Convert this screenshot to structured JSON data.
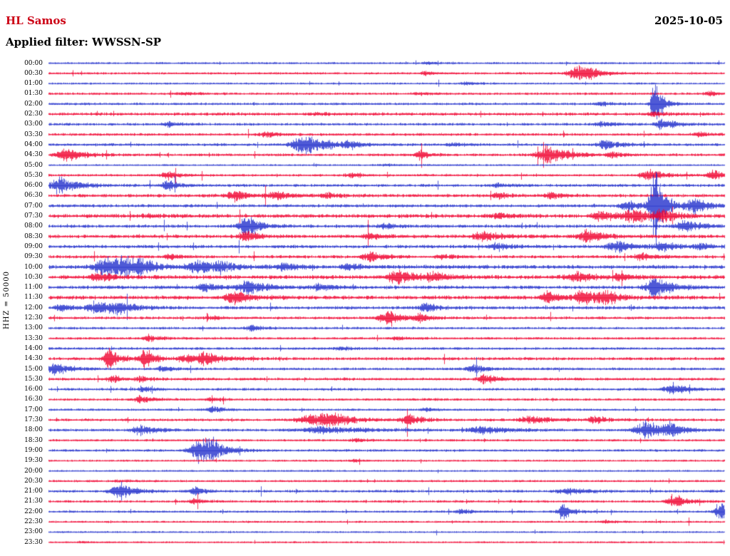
{
  "header": {
    "station": "HL Samos",
    "date": "2025-10-05",
    "filter_label": "Applied filter: WWSSN-SP"
  },
  "y_axis_label": "HHZ = 50000",
  "colors": {
    "station_text": "#cc0014",
    "text": "#000000"
  },
  "chart_data": {
    "type": "line",
    "subtype": "helicorder-seismogram",
    "title": "HL Samos 2025-10-05 Applied filter: WWSSN-SP",
    "station": "HL Samos",
    "date": "2025-10-05",
    "filter": "WWSSN-SP",
    "channel_scale": "HHZ = 50000",
    "row_duration_minutes": 30,
    "grid": false,
    "legend": false,
    "colors": {
      "blue": "#2230cc",
      "red": "#f00330"
    },
    "event_format": "[x_fraction_along_row, amplitude_px, width_px]",
    "rows": [
      {
        "t": "00:00",
        "c": "blue",
        "n": 0.9,
        "e": [
          [
            0.56,
            1.5,
            5
          ]
        ]
      },
      {
        "t": "00:30",
        "c": "red",
        "n": 1.0,
        "e": [
          [
            0.558,
            2.5,
            5
          ],
          [
            0.782,
            9,
            9
          ],
          [
            0.8,
            4,
            6
          ]
        ]
      },
      {
        "t": "01:00",
        "c": "blue",
        "n": 0.9,
        "e": [
          [
            0.62,
            1.5,
            6
          ]
        ]
      },
      {
        "t": "01:30",
        "c": "red",
        "n": 1.1,
        "e": [
          [
            0.2,
            1.5,
            8
          ],
          [
            0.55,
            1.5,
            8
          ],
          [
            0.978,
            3,
            5
          ]
        ]
      },
      {
        "t": "02:00",
        "c": "blue",
        "n": 1.1,
        "e": [
          [
            0.819,
            2.5,
            6
          ],
          [
            0.897,
            28,
            4
          ]
        ]
      },
      {
        "t": "02:30",
        "c": "red",
        "n": 1.4,
        "e": [
          [
            0.4,
            1.5,
            8
          ],
          [
            0.897,
            3,
            6
          ]
        ]
      },
      {
        "t": "03:00",
        "c": "blue",
        "n": 1.2,
        "e": [
          [
            0.177,
            3,
            5
          ],
          [
            0.819,
            3,
            7
          ],
          [
            0.909,
            7,
            7
          ]
        ]
      },
      {
        "t": "03:30",
        "c": "red",
        "n": 1.2,
        "e": [
          [
            0.322,
            4,
            6
          ],
          [
            0.962,
            2.5,
            6
          ]
        ]
      },
      {
        "t": "04:00",
        "c": "blue",
        "n": 1.2,
        "e": [
          [
            0.381,
            12,
            12
          ],
          [
            0.444,
            4,
            6
          ],
          [
            0.6,
            2,
            8
          ],
          [
            0.825,
            5,
            9
          ]
        ]
      },
      {
        "t": "04:30",
        "c": "red",
        "n": 1.2,
        "e": [
          [
            0.026,
            8,
            9
          ],
          [
            0.55,
            7,
            4
          ],
          [
            0.74,
            11,
            11
          ],
          [
            0.835,
            3,
            6
          ]
        ]
      },
      {
        "t": "05:00",
        "c": "blue",
        "n": 0.8,
        "e": [
          [
            0.5,
            1,
            10
          ]
        ]
      },
      {
        "t": "05:30",
        "c": "red",
        "n": 1.1,
        "e": [
          [
            0.177,
            5,
            6
          ],
          [
            0.449,
            3,
            6
          ],
          [
            0.888,
            7,
            8
          ],
          [
            0.983,
            6,
            6
          ]
        ]
      },
      {
        "t": "06:00",
        "c": "blue",
        "n": 1.3,
        "e": [
          [
            0.016,
            10,
            10
          ],
          [
            0.177,
            6,
            6
          ],
          [
            0.666,
            2.5,
            6
          ]
        ]
      },
      {
        "t": "06:30",
        "c": "red",
        "n": 1.5,
        "e": [
          [
            0.275,
            7,
            7
          ],
          [
            0.338,
            4,
            9
          ],
          [
            0.412,
            3,
            6
          ],
          [
            0.666,
            4,
            6
          ],
          [
            0.745,
            4,
            6
          ]
        ]
      },
      {
        "t": "07:00",
        "c": "blue",
        "n": 1.4,
        "e": [
          [
            0.856,
            6,
            7
          ],
          [
            0.897,
            45,
            5
          ],
          [
            0.957,
            8,
            9
          ]
        ]
      },
      {
        "t": "07:30",
        "c": "red",
        "n": 1.8,
        "e": [
          [
            0.148,
            2,
            6
          ],
          [
            0.666,
            3,
            8
          ],
          [
            0.819,
            6,
            9
          ],
          [
            0.867,
            8,
            10
          ],
          [
            0.909,
            6,
            8
          ]
        ]
      },
      {
        "t": "08:00",
        "c": "blue",
        "n": 1.5,
        "e": [
          [
            0.291,
            9,
            7
          ],
          [
            0.301,
            6,
            5
          ],
          [
            0.497,
            3,
            6
          ],
          [
            0.941,
            7,
            8
          ]
        ]
      },
      {
        "t": "08:30",
        "c": "red",
        "n": 1.6,
        "e": [
          [
            0.291,
            7,
            6
          ],
          [
            0.476,
            4,
            7
          ],
          [
            0.645,
            5,
            12
          ],
          [
            0.798,
            7,
            9
          ]
        ]
      },
      {
        "t": "09:00",
        "c": "blue",
        "n": 1.5,
        "e": [
          [
            0.666,
            4,
            7
          ],
          [
            0.84,
            7,
            10
          ],
          [
            0.909,
            5,
            7
          ],
          [
            0.967,
            4,
            6
          ]
        ]
      },
      {
        "t": "09:30",
        "c": "red",
        "n": 1.4,
        "e": [
          [
            0.18,
            3,
            6
          ],
          [
            0.476,
            6,
            8
          ],
          [
            0.581,
            3,
            6
          ],
          [
            0.877,
            4,
            7
          ]
        ]
      },
      {
        "t": "10:00",
        "c": "blue",
        "n": 1.8,
        "e": [
          [
            0.085,
            10,
            12
          ],
          [
            0.111,
            9,
            9
          ],
          [
            0.137,
            6,
            7
          ],
          [
            0.222,
            8,
            9
          ],
          [
            0.254,
            6,
            7
          ],
          [
            0.349,
            5,
            7
          ],
          [
            0.444,
            4,
            7
          ]
        ]
      },
      {
        "t": "10:30",
        "c": "red",
        "n": 1.8,
        "e": [
          [
            0.074,
            6,
            7
          ],
          [
            0.518,
            8,
            10
          ],
          [
            0.571,
            5,
            7
          ],
          [
            0.782,
            6,
            9
          ],
          [
            0.846,
            4,
            7
          ]
        ]
      },
      {
        "t": "11:00",
        "c": "blue",
        "n": 1.6,
        "e": [
          [
            0.233,
            5,
            7
          ],
          [
            0.296,
            9,
            9
          ],
          [
            0.402,
            4,
            7
          ],
          [
            0.899,
            12,
            9
          ]
        ]
      },
      {
        "t": "11:30",
        "c": "red",
        "n": 1.8,
        "e": [
          [
            0.275,
            8,
            8
          ],
          [
            0.74,
            6,
            8
          ],
          [
            0.793,
            8,
            10
          ],
          [
            0.825,
            6,
            7
          ]
        ]
      },
      {
        "t": "12:00",
        "c": "blue",
        "n": 1.5,
        "e": [
          [
            0.021,
            4,
            6
          ],
          [
            0.074,
            8,
            10
          ],
          [
            0.106,
            6,
            7
          ],
          [
            0.56,
            5,
            6
          ]
        ]
      },
      {
        "t": "12:30",
        "c": "red",
        "n": 1.3,
        "e": [
          [
            0.243,
            2,
            6
          ],
          [
            0.502,
            7,
            9
          ],
          [
            0.55,
            4,
            6
          ]
        ]
      },
      {
        "t": "13:00",
        "c": "blue",
        "n": 1.1,
        "e": [
          [
            0.301,
            4,
            6
          ]
        ]
      },
      {
        "t": "13:30",
        "c": "red",
        "n": 1.1,
        "e": [
          [
            0.148,
            4,
            6
          ],
          [
            0.518,
            2,
            6
          ]
        ]
      },
      {
        "t": "14:00",
        "c": "blue",
        "n": 1.2,
        "e": [
          [
            0.433,
            2,
            6
          ]
        ]
      },
      {
        "t": "14:30",
        "c": "red",
        "n": 1.4,
        "e": [
          [
            0.09,
            14,
            5
          ],
          [
            0.143,
            13,
            5
          ],
          [
            0.201,
            5,
            6
          ],
          [
            0.233,
            8,
            9
          ]
        ]
      },
      {
        "t": "15:00",
        "c": "blue",
        "n": 1.2,
        "e": [
          [
            0.011,
            7,
            9
          ],
          [
            0.169,
            3,
            6
          ],
          [
            0.629,
            5,
            7
          ]
        ]
      },
      {
        "t": "15:30",
        "c": "red",
        "n": 1.3,
        "e": [
          [
            0.095,
            4,
            5
          ],
          [
            0.137,
            3,
            6
          ],
          [
            0.645,
            5,
            7
          ]
        ]
      },
      {
        "t": "16:00",
        "c": "blue",
        "n": 1.2,
        "e": [
          [
            0.143,
            3,
            6
          ],
          [
            0.925,
            7,
            8
          ]
        ]
      },
      {
        "t": "16:30",
        "c": "red",
        "n": 1.1,
        "e": [
          [
            0.137,
            4,
            7
          ],
          [
            0.243,
            2,
            6
          ]
        ]
      },
      {
        "t": "17:00",
        "c": "blue",
        "n": 1.0,
        "e": [
          [
            0.243,
            4,
            6
          ],
          [
            0.56,
            2,
            6
          ]
        ]
      },
      {
        "t": "17:30",
        "c": "red",
        "n": 1.2,
        "e": [
          [
            0.391,
            6,
            16
          ],
          [
            0.42,
            6,
            10
          ],
          [
            0.534,
            7,
            7
          ],
          [
            0.714,
            4,
            12
          ],
          [
            0.809,
            4,
            7
          ]
        ]
      },
      {
        "t": "18:00",
        "c": "blue",
        "n": 1.2,
        "e": [
          [
            0.137,
            6,
            9
          ],
          [
            0.407,
            4,
            24
          ],
          [
            0.645,
            4,
            16
          ],
          [
            0.883,
            11,
            10
          ],
          [
            0.92,
            6,
            7
          ]
        ]
      },
      {
        "t": "18:30",
        "c": "red",
        "n": 1.0,
        "e": [
          [
            0.455,
            2,
            6
          ]
        ]
      },
      {
        "t": "19:00",
        "c": "blue",
        "n": 1.1,
        "e": [
          [
            0.222,
            14,
            9
          ],
          [
            0.243,
            8,
            7
          ]
        ]
      },
      {
        "t": "19:30",
        "c": "red",
        "n": 0.9,
        "e": [
          [
            0.455,
            1.5,
            6
          ]
        ]
      },
      {
        "t": "20:00",
        "c": "blue",
        "n": 0.8,
        "e": []
      },
      {
        "t": "20:30",
        "c": "red",
        "n": 1.0,
        "e": [
          [
            0.106,
            1.5,
            6
          ]
        ]
      },
      {
        "t": "21:00",
        "c": "blue",
        "n": 1.2,
        "e": [
          [
            0.106,
            8,
            9
          ],
          [
            0.217,
            5,
            5
          ],
          [
            0.772,
            3,
            14
          ]
        ]
      },
      {
        "t": "21:30",
        "c": "red",
        "n": 1.1,
        "e": [
          [
            0.217,
            3,
            6
          ],
          [
            0.925,
            8,
            7
          ]
        ]
      },
      {
        "t": "22:00",
        "c": "blue",
        "n": 1.0,
        "e": [
          [
            0.613,
            3,
            6
          ],
          [
            0.761,
            10,
            5
          ],
          [
            0.994,
            12,
            5
          ]
        ]
      },
      {
        "t": "22:30",
        "c": "red",
        "n": 0.9,
        "e": [
          [
            0.825,
            2,
            6
          ]
        ]
      },
      {
        "t": "23:00",
        "c": "blue",
        "n": 0.8,
        "e": []
      },
      {
        "t": "23:30",
        "c": "red",
        "n": 0.8,
        "e": [
          [
            0.05,
            1,
            5
          ]
        ]
      }
    ]
  }
}
